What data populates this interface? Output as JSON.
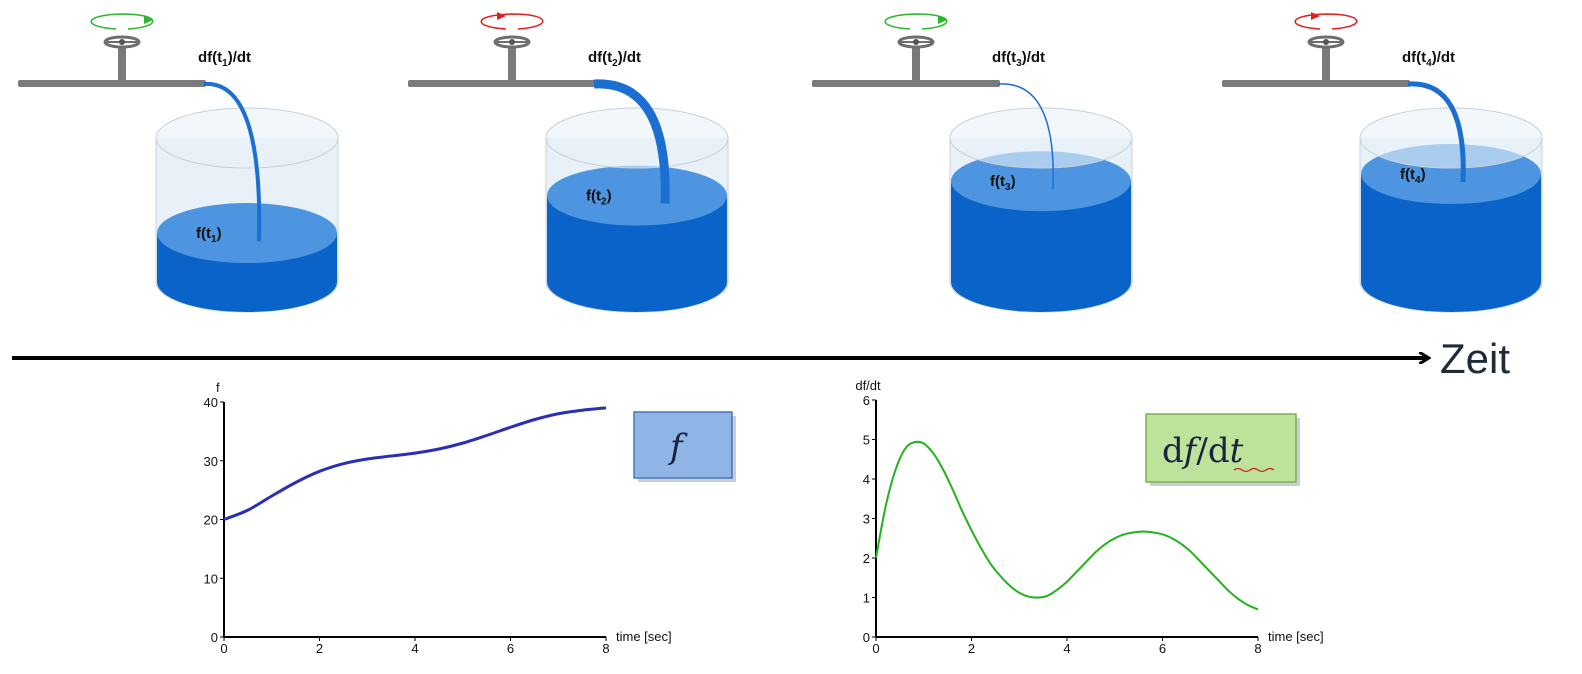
{
  "stages": [
    {
      "rate_label": "df(t",
      "rate_sub": "1",
      "rate_suffix": ")/dt",
      "level_label": "f(t",
      "level_sub": "1",
      "level_suffix": ")",
      "valve_direction_color": "#2db52d",
      "fill_fraction": 0.34,
      "stream_width": 4
    },
    {
      "rate_label": "df(t",
      "rate_sub": "2",
      "rate_suffix": ")/dt",
      "level_label": "f(t",
      "level_sub": "2",
      "level_suffix": ")",
      "valve_direction_color": "#e02020",
      "fill_fraction": 0.6,
      "stream_width": 9
    },
    {
      "rate_label": "df(t",
      "rate_sub": "3",
      "rate_suffix": ")/dt",
      "level_label": "f(t",
      "level_sub": "3",
      "level_suffix": ")",
      "valve_direction_color": "#2db52d",
      "fill_fraction": 0.7,
      "stream_width": 1.5
    },
    {
      "rate_label": "df(t",
      "rate_sub": "4",
      "rate_suffix": ")/dt",
      "level_label": "f(t",
      "level_sub": "4",
      "level_suffix": ")",
      "valve_direction_color": "#e02020",
      "fill_fraction": 0.75,
      "stream_width": 5
    }
  ],
  "timeline": {
    "label": "Zeit"
  },
  "legends": {
    "f_label": "f",
    "df_label_pre": "d",
    "df_label_f": "f",
    "df_label_mid": "/d",
    "df_label_t": "t"
  },
  "colors": {
    "water_dark": "#0a63c9",
    "water_light": "#4d95e0",
    "glass": "#e8f1f8",
    "f_line": "#2b2fb8",
    "df_line": "#22b21c",
    "f_box": "#8fb4e6",
    "df_box": "#bde39a"
  },
  "chart_data": [
    {
      "type": "line",
      "ylabel": "f",
      "xlabel": "time [sec]",
      "xlim": [
        0,
        8
      ],
      "ylim": [
        0,
        40
      ],
      "xticks": [
        0,
        2,
        4,
        6,
        8
      ],
      "yticks": [
        0,
        10,
        20,
        30,
        40
      ],
      "series": [
        {
          "x": [
            0,
            0.5,
            1,
            1.5,
            2,
            2.5,
            3,
            3.5,
            4,
            4.5,
            5,
            5.5,
            6,
            6.5,
            7,
            7.5,
            8
          ],
          "y": [
            20,
            21.6,
            24,
            26.3,
            28.2,
            29.5,
            30.3,
            30.8,
            31.3,
            32,
            33,
            34.3,
            35.7,
            37,
            38,
            38.6,
            39
          ]
        }
      ]
    },
    {
      "type": "line",
      "ylabel": "df/dt",
      "xlabel": "time [sec]",
      "xlim": [
        0,
        8
      ],
      "ylim": [
        0,
        6
      ],
      "xticks": [
        0,
        2,
        4,
        6,
        8
      ],
      "yticks": [
        0,
        1,
        2,
        3,
        4,
        5,
        6
      ],
      "series": [
        {
          "x": [
            0,
            0.2,
            0.4,
            0.6,
            0.8,
            1.0,
            1.2,
            1.4,
            1.6,
            1.8,
            2.0,
            2.2,
            2.4,
            2.6,
            2.8,
            3.0,
            3.2,
            3.4,
            3.6,
            3.8,
            4.0,
            4.2,
            4.4,
            4.6,
            4.8,
            5.0,
            5.2,
            5.4,
            5.6,
            5.8,
            6.0,
            6.2,
            6.4,
            6.6,
            6.8,
            7.0,
            7.2,
            7.4,
            7.6,
            7.8,
            8.0
          ],
          "y": [
            2.0,
            3.3,
            4.2,
            4.75,
            4.93,
            4.9,
            4.65,
            4.25,
            3.75,
            3.2,
            2.7,
            2.25,
            1.85,
            1.55,
            1.3,
            1.12,
            1.02,
            1.0,
            1.05,
            1.2,
            1.4,
            1.65,
            1.9,
            2.15,
            2.35,
            2.5,
            2.6,
            2.65,
            2.67,
            2.65,
            2.6,
            2.5,
            2.35,
            2.15,
            1.9,
            1.65,
            1.4,
            1.15,
            0.95,
            0.8,
            0.7
          ]
        }
      ]
    }
  ]
}
